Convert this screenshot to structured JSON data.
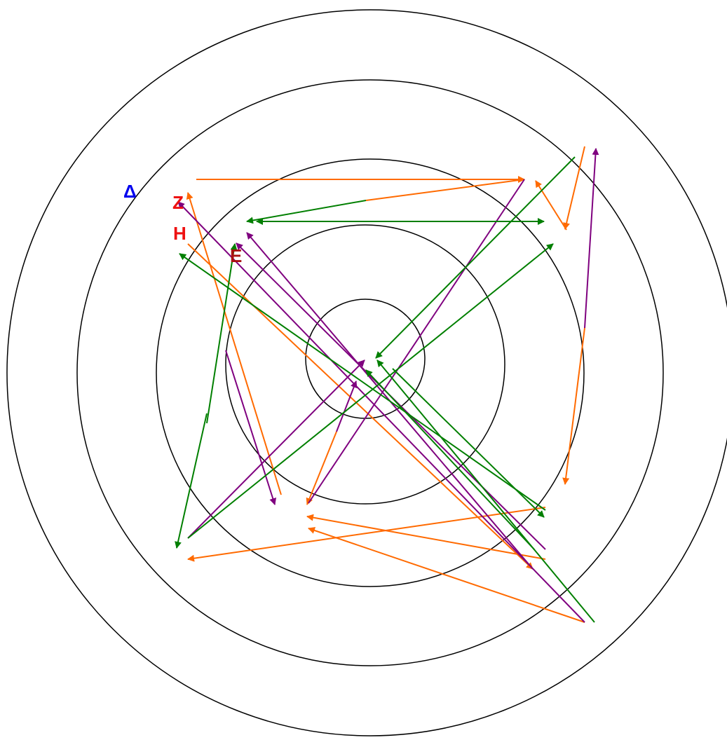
{
  "labels": {
    "delta": {
      "text": "Δ",
      "color": "#0000ee"
    },
    "zeta": {
      "text": "Z",
      "color": "#ee1111"
    },
    "eta": {
      "text": "H",
      "color": "#ee1111"
    },
    "epsilon": {
      "text": "E",
      "color": "#aa1111"
    }
  },
  "colors": {
    "rings": "#000000",
    "orange": "#ff6a00",
    "purple": "#7f007f",
    "green": "#007f00"
  },
  "ring_count": 5,
  "arrow_groups": [
    "orange",
    "purple",
    "green"
  ]
}
